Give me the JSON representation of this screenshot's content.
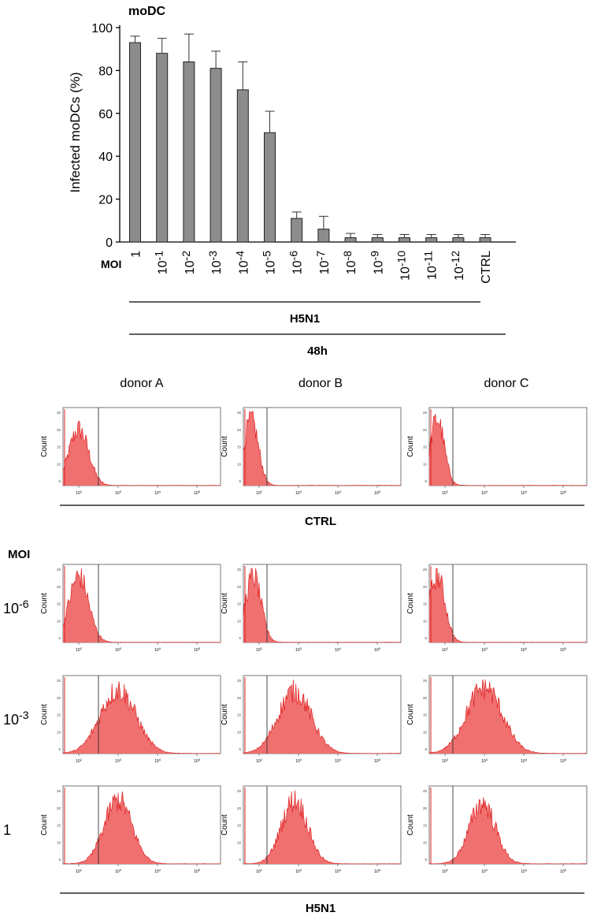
{
  "chart_data": [
    {
      "type": "bar",
      "title": "moDC",
      "ylabel": "Infected moDCs (%)",
      "xlabel": "MOI",
      "ylim": [
        0,
        100
      ],
      "yticks": [
        "0",
        "20",
        "40",
        "60",
        "80",
        "100"
      ],
      "categories": [
        {
          "base": "1",
          "exp": ""
        },
        {
          "base": "10",
          "exp": "-1"
        },
        {
          "base": "10",
          "exp": "-2"
        },
        {
          "base": "10",
          "exp": "-3"
        },
        {
          "base": "10",
          "exp": "-4"
        },
        {
          "base": "10",
          "exp": "-5"
        },
        {
          "base": "10",
          "exp": "-6"
        },
        {
          "base": "10",
          "exp": "-7"
        },
        {
          "base": "10",
          "exp": "-8"
        },
        {
          "base": "10",
          "exp": "-9"
        },
        {
          "base": "10",
          "exp": "-10"
        },
        {
          "base": "10",
          "exp": "-11"
        },
        {
          "base": "10",
          "exp": "-12"
        },
        {
          "base": "CTRL",
          "exp": ""
        }
      ],
      "values": [
        93,
        88,
        84,
        81,
        71,
        51,
        11,
        6,
        2,
        2,
        2,
        2,
        2,
        2
      ],
      "errors": [
        3,
        7,
        13,
        8,
        13,
        10,
        3,
        6,
        2,
        1.5,
        1.5,
        1.5,
        1.5,
        1.5
      ],
      "bar_color": "#8c8c8c",
      "groups": [
        {
          "label": "H5N1",
          "from": 0,
          "to": 12
        },
        {
          "label": "48h",
          "from": 0,
          "to": 13
        }
      ]
    },
    {
      "type": "histogram-grid",
      "columns": [
        "donor A",
        "donor B",
        "donor C"
      ],
      "ylabel": "Count",
      "fill_color": "#f07070",
      "edge_color": "#e02020",
      "x_tick_labels": [
        {
          "base": "10",
          "exp": "2"
        },
        {
          "base": "10",
          "exp": "3"
        },
        {
          "base": "10",
          "exp": "4"
        },
        {
          "base": "10",
          "exp": "5"
        }
      ],
      "y_tick_labels": [
        "25",
        "20",
        "15",
        "10",
        "5"
      ],
      "moi_header": "MOI",
      "ctrl_label": "CTRL",
      "h5n1_label": "H5N1",
      "rows": [
        {
          "label": {
            "base": "",
            "exp": ""
          },
          "group": "CTRL",
          "peaks": [
            {
              "center": 2.0,
              "width": 0.25,
              "height": 0.72
            },
            {
              "center": 1.8,
              "width": 0.18,
              "height": 0.85
            },
            {
              "center": 1.8,
              "width": 0.18,
              "height": 0.85
            }
          ]
        },
        {
          "label": {
            "base": "10",
            "exp": "-6"
          },
          "group": "H5N1",
          "peaks": [
            {
              "center": 2.0,
              "width": 0.25,
              "height": 0.85
            },
            {
              "center": 1.85,
              "width": 0.2,
              "height": 0.85
            },
            {
              "center": 1.8,
              "width": 0.2,
              "height": 0.85
            }
          ]
        },
        {
          "label": {
            "base": "10",
            "exp": "-3"
          },
          "group": "H5N1",
          "peaks": [
            {
              "center": 3.0,
              "width": 0.45,
              "height": 0.82
            },
            {
              "center": 2.9,
              "width": 0.42,
              "height": 0.8
            },
            {
              "center": 3.0,
              "width": 0.45,
              "height": 0.85
            }
          ]
        },
        {
          "label": {
            "base": "1",
            "exp": ""
          },
          "group": "H5N1",
          "peaks": [
            {
              "center": 3.0,
              "width": 0.35,
              "height": 0.82
            },
            {
              "center": 2.9,
              "width": 0.33,
              "height": 0.82
            },
            {
              "center": 2.95,
              "width": 0.33,
              "height": 0.78
            }
          ]
        }
      ]
    }
  ]
}
